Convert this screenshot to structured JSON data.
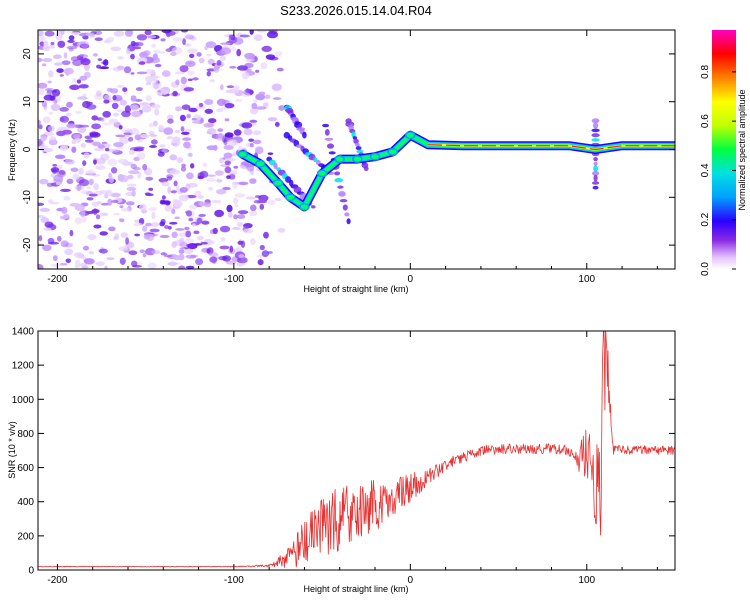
{
  "figure_title": "S233.2026.015.14.04.R04",
  "chart_data": [
    {
      "type": "heatmap",
      "title": "S233.2026.015.14.04.R04",
      "xlabel": "Height of straight line (km)",
      "ylabel": "Frequency (Hz)",
      "xlim": [
        -211,
        150
      ],
      "ylim": [
        -25,
        25
      ],
      "xticks": [
        -200,
        -100,
        0,
        100
      ],
      "yticks": [
        -20,
        -10,
        0,
        10,
        20
      ],
      "colorbar": {
        "label": "Normalized spectral amplitude",
        "range": [
          0,
          0.97
        ],
        "ticks": [
          0.0,
          0.2,
          0.4,
          0.6,
          0.8
        ],
        "colors": [
          "#ffffff",
          "#e4bfff",
          "#8a2be2",
          "#2a00ff",
          "#00a0ff",
          "#00e0e0",
          "#00ff40",
          "#c0ff00",
          "#ffff00",
          "#ff8000",
          "#ff0000",
          "#ff00c0"
        ]
      },
      "noise_region": {
        "x_from": -211,
        "x_to": -80,
        "freq_from": -25,
        "freq_to": 25
      },
      "ridge": [
        {
          "x": -95,
          "f": -1
        },
        {
          "x": -85,
          "f": -3
        },
        {
          "x": -75,
          "f": -7
        },
        {
          "x": -68,
          "f": -10
        },
        {
          "x": -60,
          "f": -12
        },
        {
          "x": -50,
          "f": -5
        },
        {
          "x": -40,
          "f": -2
        },
        {
          "x": -30,
          "f": -2
        },
        {
          "x": -20,
          "f": -1.5
        },
        {
          "x": -10,
          "f": -0.5
        },
        {
          "x": 0,
          "f": 3
        },
        {
          "x": 10,
          "f": 1
        },
        {
          "x": 30,
          "f": 0.8
        },
        {
          "x": 60,
          "f": 0.8
        },
        {
          "x": 90,
          "f": 0.8
        },
        {
          "x": 105,
          "f": 0
        },
        {
          "x": 120,
          "f": 0.8
        },
        {
          "x": 150,
          "f": 0.8
        }
      ],
      "side_streaks": [
        {
          "x1": -80,
          "f1": -2,
          "x2": -55,
          "f2": -12
        },
        {
          "x1": -70,
          "f1": 3,
          "x2": -45,
          "f2": -5
        },
        {
          "x1": -48,
          "f1": 5,
          "x2": -35,
          "f2": -15
        },
        {
          "x1": -35,
          "f1": 6,
          "x2": -25,
          "f2": -4
        },
        {
          "x1": -70,
          "f1": 9,
          "x2": -60,
          "f2": 3
        },
        {
          "x1": 105,
          "f1": 6,
          "x2": 105,
          "f2": -8
        }
      ]
    },
    {
      "type": "line",
      "xlabel": "Height of straight line (km)",
      "ylabel": "SNR (10 * v/v)",
      "xlim": [
        -211,
        150
      ],
      "ylim": [
        0,
        1400
      ],
      "xticks": [
        -200,
        -100,
        0,
        100
      ],
      "yticks": [
        0,
        200,
        400,
        600,
        800,
        1000,
        1200,
        1400
      ],
      "color": "#e83030",
      "x": [
        -211,
        -150,
        -100,
        -80,
        -70,
        -60,
        -50,
        -40,
        -30,
        -20,
        -10,
        0,
        10,
        20,
        30,
        40,
        60,
        80,
        90,
        95,
        100,
        105,
        108,
        110,
        115,
        130,
        150
      ],
      "y": [
        20,
        20,
        20,
        25,
        60,
        150,
        250,
        300,
        350,
        380,
        420,
        480,
        540,
        620,
        660,
        700,
        710,
        710,
        700,
        640,
        700,
        600,
        350,
        1450,
        700,
        705,
        700
      ],
      "noise_amplitude": [
        2,
        2,
        2,
        8,
        60,
        140,
        180,
        190,
        170,
        150,
        120,
        90,
        50,
        35,
        30,
        30,
        30,
        30,
        30,
        60,
        170,
        240,
        300,
        280,
        30,
        25,
        25
      ],
      "peaks": [
        {
          "x": 110,
          "y": 1450
        },
        {
          "x": 103,
          "y": 960
        }
      ]
    }
  ]
}
